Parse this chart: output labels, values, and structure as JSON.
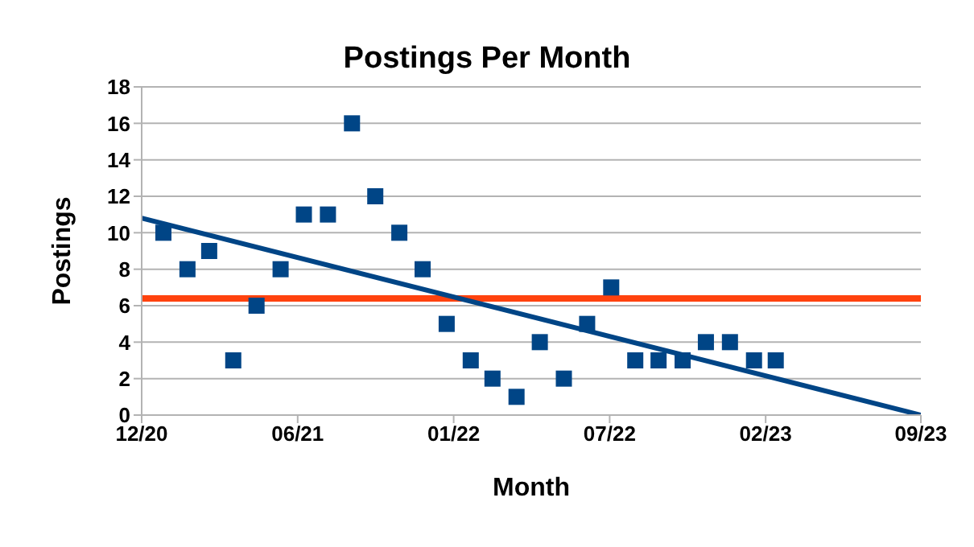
{
  "chart_data": {
    "type": "scatter",
    "title": "Postings Per Month",
    "xlabel": "Month",
    "ylabel": "Postings",
    "x": [
      "2021-01-01",
      "2021-02-01",
      "2021-03-01",
      "2021-04-01",
      "2021-05-01",
      "2021-06-01",
      "2021-07-01",
      "2021-08-01",
      "2021-09-01",
      "2021-10-01",
      "2021-11-01",
      "2021-12-01",
      "2022-01-01",
      "2022-02-01",
      "2022-03-01",
      "2022-04-01",
      "2022-05-01",
      "2022-06-01",
      "2022-07-01",
      "2022-08-01",
      "2022-09-01",
      "2022-10-01",
      "2022-11-01",
      "2022-12-01",
      "2023-01-01",
      "2023-02-01",
      "2023-03-01"
    ],
    "series": [
      {
        "color": "#004586",
        "marker": "square",
        "values": [
          10,
          8,
          9,
          3,
          6,
          8,
          11,
          11,
          16,
          12,
          10,
          8,
          5,
          3,
          2,
          1,
          4,
          2,
          5,
          7,
          3,
          3,
          3,
          4,
          4,
          3,
          3
        ]
      },
      {
        "type": "line",
        "color": "#004586",
        "marker": "none",
        "x": [
          "2020-12-04",
          "2023-09-04"
        ],
        "values": [
          10.8,
          0
        ]
      }
    ],
    "xlim": [
      "2020-12-04",
      "2023-09-04"
    ],
    "xticks": [
      {
        "value": "2020-12-04",
        "label": "12/20"
      },
      {
        "value": "2021-06-23",
        "label": "06/21"
      },
      {
        "value": "2022-01-10",
        "label": "01/22"
      },
      {
        "value": "2022-07-30",
        "label": "07/22"
      },
      {
        "value": "2023-02-16",
        "label": "02/23"
      },
      {
        "value": "2023-09-04",
        "label": "09/23"
      }
    ],
    "ylim": [
      0,
      18
    ],
    "yticks": [
      0,
      2,
      4,
      6,
      8,
      10,
      12,
      14,
      16,
      18
    ],
    "ref_lines": [
      {
        "axis": "y",
        "value": 6.4,
        "color": "#ff420e"
      }
    ],
    "grid": "y"
  }
}
